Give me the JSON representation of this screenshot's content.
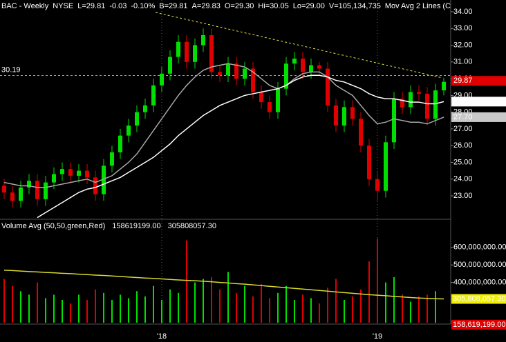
{
  "chart_data": {
    "type": "candlestick",
    "header": [
      {
        "text": "BAC - Weekly",
        "color": "#ffffff"
      },
      {
        "text": "NYSE",
        "color": "#ffffff"
      },
      {
        "text": "L=29.81",
        "color": "#ffffff"
      },
      {
        "text": "-0.03",
        "color": "#ff3030"
      },
      {
        "text": "-0.10%",
        "color": "#ff3030"
      },
      {
        "text": "B=29.81",
        "color": "#ffffff"
      },
      {
        "text": "A=29.83",
        "color": "#ffffff"
      },
      {
        "text": "O=29.30",
        "color": "#ff3030"
      },
      {
        "text": "Hi=30.05",
        "color": "#ffffff"
      },
      {
        "text": "Lo=29.00",
        "color": "#ffffff"
      },
      {
        "text": "V=105,134,735",
        "color": "#ffffff"
      },
      {
        "text": "Mov Avg 2 Lines (C",
        "color": "#ffffff"
      }
    ],
    "categories": [
      null,
      null,
      null,
      null,
      null,
      null,
      null,
      null,
      null,
      null,
      null,
      null,
      null,
      null,
      null,
      null,
      null,
      null,
      null,
      "'18",
      null,
      null,
      null,
      null,
      null,
      null,
      null,
      null,
      null,
      null,
      null,
      null,
      null,
      null,
      null,
      null,
      null,
      null,
      null,
      null,
      null,
      null,
      null,
      null,
      null,
      "'19",
      null,
      null,
      null,
      null,
      null,
      null,
      null,
      null
    ],
    "open": [
      23.6,
      23.2,
      22.7,
      23.5,
      23.9,
      22.8,
      23.8,
      24.3,
      24.6,
      24.2,
      24.5,
      24.1,
      23.1,
      24.8,
      25.6,
      26.6,
      27.2,
      28.0,
      28.4,
      29.6,
      30.3,
      31.3,
      32.2,
      31.0,
      32.0,
      32.6,
      30.4,
      30.2,
      30.9,
      30.0,
      30.6,
      29.2,
      28.6,
      28.0,
      29.4,
      30.9,
      31.2,
      30.4,
      30.8,
      30.6,
      28.4,
      27.2,
      28.3,
      27.6,
      26.0,
      24.0,
      23.3,
      26.2,
      28.8,
      28.3,
      29.2,
      29.1,
      27.6,
      29.3
    ],
    "high": [
      24.0,
      23.6,
      23.9,
      24.3,
      24.3,
      24.2,
      24.7,
      25.0,
      25.0,
      24.9,
      24.9,
      24.5,
      25.2,
      26.0,
      27.0,
      27.6,
      28.4,
      28.8,
      30.0,
      30.7,
      31.7,
      32.6,
      32.6,
      32.4,
      33.0,
      33.0,
      30.8,
      31.3,
      31.3,
      31.0,
      31.0,
      29.6,
      29.0,
      29.8,
      31.3,
      31.6,
      31.6,
      31.2,
      31.0,
      31.0,
      28.8,
      28.7,
      28.7,
      28.0,
      26.4,
      24.4,
      26.6,
      29.2,
      29.2,
      29.6,
      29.6,
      29.5,
      29.7,
      30.05
    ],
    "low": [
      22.8,
      22.3,
      22.3,
      23.1,
      22.4,
      22.4,
      23.4,
      23.9,
      23.8,
      23.8,
      23.7,
      22.7,
      22.7,
      24.4,
      25.2,
      26.2,
      26.8,
      27.6,
      28.0,
      29.2,
      29.9,
      30.9,
      30.6,
      30.6,
      31.6,
      30.0,
      29.8,
      29.8,
      29.6,
      29.6,
      28.8,
      28.2,
      27.6,
      27.6,
      29.0,
      30.5,
      30.0,
      30.0,
      30.2,
      28.0,
      26.8,
      26.8,
      27.2,
      25.6,
      23.6,
      22.7,
      22.9,
      25.8,
      27.9,
      27.9,
      28.7,
      27.2,
      27.2,
      29.0
    ],
    "close": [
      23.2,
      22.7,
      23.5,
      23.9,
      22.8,
      23.8,
      24.3,
      24.6,
      24.2,
      24.5,
      24.1,
      23.1,
      24.8,
      25.6,
      26.6,
      27.2,
      28.0,
      28.4,
      29.6,
      30.3,
      31.3,
      32.2,
      31.0,
      32.0,
      32.6,
      30.4,
      30.2,
      30.9,
      30.0,
      30.6,
      29.2,
      28.6,
      28.0,
      29.4,
      30.9,
      31.2,
      30.4,
      30.8,
      30.6,
      28.4,
      27.2,
      28.3,
      27.6,
      26.0,
      24.0,
      23.3,
      26.2,
      28.8,
      28.3,
      29.2,
      29.1,
      27.6,
      29.3,
      29.81
    ],
    "up_color": "#00e000",
    "down_color": "#e00000",
    "ylim": [
      21.6,
      34.7
    ],
    "yticks": [
      {
        "value": 23,
        "label": "23.00"
      },
      {
        "value": 24,
        "label": "24.00"
      },
      {
        "value": 25,
        "label": "25.00"
      },
      {
        "value": 26,
        "label": "26.00"
      },
      {
        "value": 27,
        "label": "27.00"
      },
      {
        "value": 28,
        "label": "28.00"
      },
      {
        "value": 29,
        "label": "29.00"
      },
      {
        "value": 30,
        "label": "30.00"
      },
      {
        "value": 31,
        "label": "31.00"
      },
      {
        "value": 32,
        "label": "32.00"
      },
      {
        "value": 33,
        "label": "33.00"
      },
      {
        "value": 34,
        "label": "34.00"
      }
    ],
    "moving_averages": [
      {
        "color": "#a8a8a8",
        "values": [
          23.8,
          23.7,
          23.6,
          23.6,
          23.5,
          23.5,
          23.6,
          23.7,
          23.8,
          23.9,
          24.0,
          23.8,
          24.0,
          24.2,
          24.6,
          25.0,
          25.5,
          26.2,
          26.9,
          27.6,
          28.3,
          29.0,
          29.6,
          30.1,
          30.5,
          30.7,
          30.8,
          30.9,
          30.8,
          30.7,
          30.4,
          30.0,
          29.6,
          29.4,
          29.6,
          30.0,
          30.3,
          30.4,
          30.4,
          30.1,
          29.6,
          29.3,
          29.0,
          28.4,
          27.8,
          27.3,
          27.4,
          27.6,
          27.5,
          27.4,
          27.4,
          27.3,
          27.5,
          27.7
        ]
      },
      {
        "color": "#ffffff",
        "values": [
          null,
          null,
          null,
          null,
          21.7,
          22.0,
          22.3,
          22.6,
          22.9,
          23.2,
          23.4,
          23.5,
          23.7,
          23.9,
          24.1,
          24.4,
          24.7,
          25.0,
          25.3,
          25.7,
          26.1,
          26.6,
          27.0,
          27.4,
          27.8,
          28.1,
          28.4,
          28.6,
          28.8,
          29.0,
          29.1,
          29.2,
          29.3,
          29.4,
          29.6,
          29.9,
          30.1,
          30.2,
          30.2,
          30.1,
          29.9,
          29.8,
          29.6,
          29.4,
          29.1,
          28.9,
          28.8,
          28.8,
          28.7,
          28.6,
          28.6,
          28.5,
          28.5,
          28.63
        ]
      }
    ],
    "h_line": {
      "value": 30.19,
      "color": "#30c8d0"
    },
    "price_labels": [
      {
        "value": 29.87,
        "bg": "#e00000",
        "fg": "#ffffff"
      },
      {
        "value": 28.63,
        "bg": "#ffffff",
        "fg": "#000000"
      },
      {
        "value": 27.7,
        "label": "27.70",
        "bg": "#c8c8c8",
        "fg": "#000000"
      }
    ],
    "volume": {
      "title": "Volume Avg (50,50,green,Red)",
      "readouts": [
        {
          "text": "158619199.00",
          "color": "#ff3030"
        },
        {
          "text": "305808057.30",
          "color": "#e8e830"
        }
      ],
      "values": [
        420000000,
        380000000,
        350000000,
        330000000,
        400000000,
        310000000,
        330000000,
        300000000,
        280000000,
        330000000,
        300000000,
        360000000,
        340000000,
        300000000,
        330000000,
        310000000,
        350000000,
        320000000,
        380000000,
        300000000,
        360000000,
        340000000,
        640000000,
        400000000,
        420000000,
        430000000,
        360000000,
        460000000,
        340000000,
        380000000,
        320000000,
        390000000,
        310000000,
        340000000,
        380000000,
        300000000,
        330000000,
        310000000,
        280000000,
        370000000,
        420000000,
        300000000,
        320000000,
        360000000,
        520000000,
        650000000,
        400000000,
        430000000,
        330000000,
        290000000,
        320000000,
        330000000,
        350000000,
        158619199
      ],
      "avg": {
        "color": "#d8d830",
        "values": [
          470000000,
          468000000,
          465000000,
          462000000,
          460000000,
          457000000,
          455000000,
          452000000,
          450000000,
          447000000,
          445000000,
          442000000,
          440000000,
          437000000,
          434000000,
          431000000,
          428000000,
          425000000,
          423000000,
          420000000,
          417000000,
          414000000,
          412000000,
          410000000,
          407000000,
          404000000,
          400000000,
          397000000,
          393000000,
          390000000,
          386000000,
          382000000,
          378000000,
          374000000,
          370000000,
          366000000,
          362000000,
          358000000,
          354000000,
          350000000,
          346000000,
          342000000,
          338000000,
          334000000,
          330000000,
          327000000,
          324000000,
          320000000,
          317000000,
          314000000,
          311000000,
          309000000,
          307000000,
          305808057.3
        ]
      },
      "ylim": [
        170000000,
        753000000
      ],
      "yticks": [
        {
          "value": 400000000,
          "label": "400,000,000.00"
        },
        {
          "value": 500000000,
          "label": "500,000,000.00"
        },
        {
          "value": 600000000,
          "label": "600,000,000.00"
        }
      ],
      "labels": [
        {
          "value": 305808057.3,
          "label": "305,808,057.30",
          "bg": "#f0f000",
          "fg": "#000000"
        },
        {
          "value": 158619199,
          "label": "158,619,199.00",
          "bg": "#e00000",
          "fg": "#ffffff"
        }
      ]
    }
  }
}
